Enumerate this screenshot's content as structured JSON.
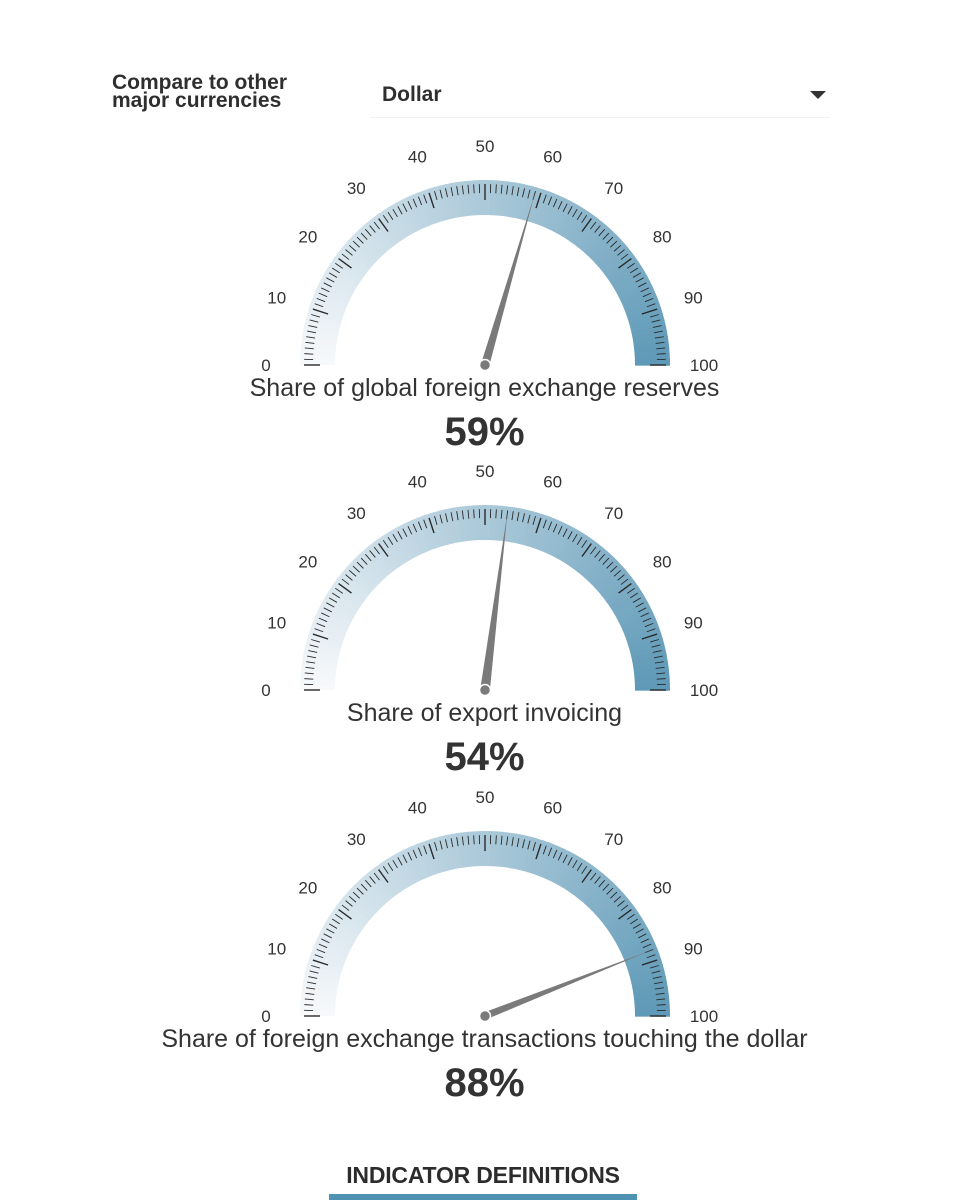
{
  "controls": {
    "compare_label": "Compare to other\nmajor currencies",
    "selected_currency": "Dollar",
    "caret_icon": "caret-down-icon"
  },
  "colors": {
    "gauge_start": "#f7f9fb",
    "gauge_end": "#5e99b7",
    "needle": "#7a7a7a",
    "text": "#333333",
    "accent": "#4f92b2"
  },
  "chart_data": [
    {
      "type": "gauge",
      "title": "Share of global foreign exchange reserves",
      "value": 59,
      "value_label": "59%",
      "range": [
        0,
        100
      ],
      "ticks": [
        "0",
        "10",
        "20",
        "30",
        "40",
        "50",
        "60",
        "70",
        "80",
        "90",
        "100"
      ]
    },
    {
      "type": "gauge",
      "title": "Share of export invoicing",
      "value": 54,
      "value_label": "54%",
      "range": [
        0,
        100
      ],
      "ticks": [
        "0",
        "10",
        "20",
        "30",
        "40",
        "50",
        "60",
        "70",
        "80",
        "90",
        "100"
      ]
    },
    {
      "type": "gauge",
      "title": "Share of foreign exchange transactions touching the dollar",
      "value": 88,
      "value_label": "88%",
      "range": [
        0,
        100
      ],
      "ticks": [
        "0",
        "10",
        "20",
        "30",
        "40",
        "50",
        "60",
        "70",
        "80",
        "90",
        "100"
      ]
    }
  ],
  "footer": {
    "definitions_label": "INDICATOR DEFINITIONS"
  }
}
